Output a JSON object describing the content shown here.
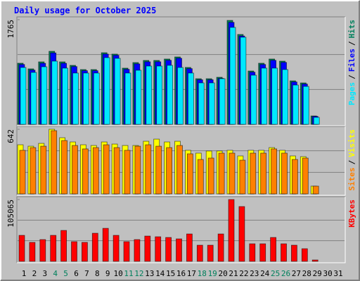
{
  "chart_data": [
    {
      "type": "bar",
      "title": "Daily usage for October 2025",
      "legend_separator": "/",
      "categories": [
        "1",
        "2",
        "3",
        "4",
        "5",
        "6",
        "7",
        "8",
        "9",
        "10",
        "11",
        "12",
        "13",
        "14",
        "15",
        "16",
        "17",
        "18",
        "19",
        "20",
        "21",
        "22",
        "23",
        "24",
        "25",
        "26",
        "27",
        "28",
        "29",
        "30",
        "31"
      ],
      "ylim": [
        0,
        1765
      ],
      "yticks": [
        1765
      ],
      "series": [
        {
          "name": "Pages",
          "color": "#00e8ff",
          "values": [
            959,
            876,
            971,
            1066,
            948,
            865,
            865,
            865,
            1125,
            1113,
            865,
            912,
            983,
            983,
            995,
            959,
            865,
            699,
            699,
            770,
            1635,
            1469,
            829,
            948,
            948,
            924,
            663,
            640,
            118,
            null,
            null
          ]
        },
        {
          "name": "Files",
          "color": "#0000ff",
          "values": [
            1010,
            915,
            1030,
            1205,
            1030,
            975,
            905,
            905,
            1185,
            1165,
            928,
            1020,
            1055,
            1055,
            1080,
            1115,
            940,
            752,
            752,
            775,
            1720,
            1490,
            880,
            1010,
            1080,
            1045,
            715,
            680,
            135,
            null,
            null
          ]
        },
        {
          "name": "Hits",
          "color": "#00805c",
          "values": [
            1031,
            936,
            1054,
            1232,
            1054,
            995,
            924,
            924,
            1208,
            1185,
            948,
            1042,
            1078,
            1078,
            1102,
            1137,
            960,
            770,
            770,
            794,
            1753,
            1516,
            900,
            1031,
            1102,
            1066,
            734,
            699,
            142,
            null,
            null
          ]
        }
      ]
    },
    {
      "type": "bar",
      "legend_separator": "/",
      "categories": [
        "1",
        "2",
        "3",
        "4",
        "5",
        "6",
        "7",
        "8",
        "9",
        "10",
        "11",
        "12",
        "13",
        "14",
        "15",
        "16",
        "17",
        "18",
        "19",
        "20",
        "21",
        "22",
        "23",
        "24",
        "25",
        "26",
        "27",
        "28",
        "29",
        "30",
        "31"
      ],
      "ylim": [
        0,
        642
      ],
      "yticks": [
        642
      ],
      "series": [
        {
          "name": "Sites",
          "color": "#ff8000",
          "values": [
            433,
            460,
            474,
            628,
            530,
            481,
            447,
            460,
            488,
            460,
            433,
            474,
            488,
            474,
            460,
            481,
            398,
            342,
            356,
            405,
            405,
            335,
            405,
            405,
            447,
            405,
            342,
            356,
            77,
            null,
            null
          ]
        },
        {
          "name": "Visits",
          "color": "#ffff00",
          "values": [
            488,
            474,
            502,
            642,
            558,
            516,
            488,
            481,
            516,
            495,
            481,
            481,
            523,
            544,
            516,
            523,
            433,
            405,
            426,
            426,
            433,
            377,
            433,
            433,
            460,
            433,
            377,
            370,
            77,
            null,
            null
          ]
        }
      ]
    },
    {
      "type": "bar",
      "categories": [
        "1",
        "2",
        "3",
        "4",
        "5",
        "6",
        "7",
        "8",
        "9",
        "10",
        "11",
        "12",
        "13",
        "14",
        "15",
        "16",
        "17",
        "18",
        "19",
        "20",
        "21",
        "22",
        "23",
        "24",
        "25",
        "26",
        "27",
        "28",
        "29",
        "30",
        "31"
      ],
      "category_colors": [
        "#000000",
        "#000000",
        "#000000",
        "#00805c",
        "#00805c",
        "#000000",
        "#000000",
        "#000000",
        "#000000",
        "#000000",
        "#00805c",
        "#00805c",
        "#000000",
        "#000000",
        "#000000",
        "#000000",
        "#000000",
        "#00805c",
        "#00805c",
        "#000000",
        "#000000",
        "#000000",
        "#000000",
        "#000000",
        "#00805c",
        "#00805c",
        "#000000",
        "#000000",
        "#000000",
        "#000000",
        "#000000"
      ],
      "ylim": [
        0,
        105065
      ],
      "yticks": [
        105065
      ],
      "series": [
        {
          "name": "KBytes",
          "color": "#ff0000",
          "values": [
            44175,
            32236,
            37012,
            44175,
            52532,
            33430,
            32236,
            47757,
            56114,
            44175,
            33430,
            37012,
            42981,
            41787,
            40593,
            38205,
            46563,
            27460,
            27460,
            46563,
            105065,
            93126,
            29848,
            29848,
            40593,
            29848,
            27460,
            21490,
            2388,
            null,
            null
          ]
        }
      ]
    }
  ]
}
